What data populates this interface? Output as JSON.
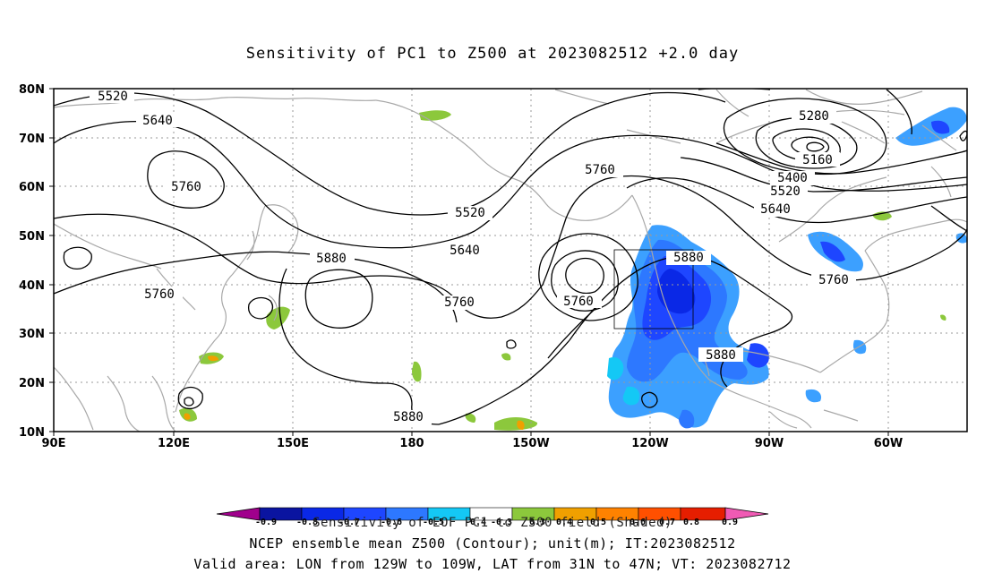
{
  "title": "Sensitivity of PC1 to Z500 at 2023082512 +2.0 day",
  "map": {
    "lat_labels": [
      "80N",
      "70N",
      "60N",
      "50N",
      "40N",
      "30N",
      "20N",
      "10N"
    ],
    "lon_labels": [
      "90E",
      "120E",
      "150E",
      "180",
      "150W",
      "120W",
      "90W",
      "60W"
    ],
    "contour_labels": [
      "5520",
      "5640",
      "5760",
      "5760",
      "5880",
      "5520",
      "5640",
      "5760",
      "5760",
      "5880",
      "5880",
      "5760",
      "5280",
      "5160",
      "5400",
      "5520",
      "5640",
      "5760",
      "5880"
    ],
    "colors": {
      "contour": "#000000",
      "coastline": "#a8a8a8",
      "grid": "#9a9a9a",
      "neg_shading": [
        "#0a28e6",
        "#1e5aff",
        "#2d8cff",
        "#3cb4ff",
        "#12c8f0"
      ],
      "pos_shading": [
        "#8cc83c",
        "#f0a000",
        "#ff6a00",
        "#e61e00"
      ]
    },
    "box": {
      "lon_from": "129W",
      "lon_to": "109W",
      "lat_from": "31N",
      "lat_to": "47N"
    }
  },
  "colorbar": {
    "tick_labels": [
      "-0.9",
      "-0.8",
      "-0.7",
      "-0.6",
      "-0.5",
      "-0.4",
      "-0.3",
      "0.3",
      "0.4",
      "0.5",
      "0.6",
      "0.7",
      "0.8",
      "0.9"
    ],
    "colors": [
      "#a0008c",
      "#0a14a0",
      "#0a28e6",
      "#1e46ff",
      "#2d78ff",
      "#3ca0ff",
      "#14c8f5",
      "#ffffff",
      "#8cc83c",
      "#f0a000",
      "#ff8200",
      "#ff5000",
      "#e61e00",
      "#f05ab4"
    ]
  },
  "caption": "Sensitivity of EOF PC1 to Z500 field (Shaded)",
  "footer_line2": "NCEP ensemble mean Z500 (Contour); unit(m); IT:2023082512",
  "footer_line3": "Valid area: LON from 129W to 109W, LAT from 31N to 47N; VT: 2023082712"
}
